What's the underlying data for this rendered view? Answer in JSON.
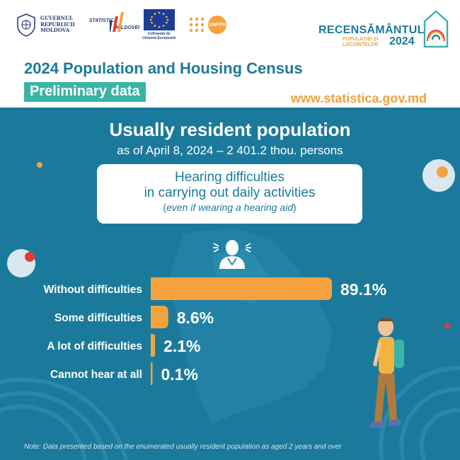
{
  "header": {
    "gov": {
      "line1": "GUVERNUL",
      "line2": "REPUBLICII",
      "line3": "MOLDOVA"
    },
    "statistica": {
      "line1": "STATISTICA",
      "line2": "MOLDOVEI"
    },
    "eu_caption": {
      "line1": "Cofinanțat de",
      "line2": "Uniunea Europeană"
    },
    "unfpa": "UNFPA",
    "brand": {
      "title": "RECENSĂMÂNTUL",
      "sub1": "POPULAȚIEI ȘI",
      "sub2": "LOCUINȚELOR",
      "year": "2024"
    },
    "main_title": "2024 Population and Housing Census",
    "badge": "Preliminary data",
    "website": "www.statistica.gov.md"
  },
  "section": {
    "title": "Usually resident population",
    "subtitle": "as of April 8, 2024 – 2 401.2 thou. persons"
  },
  "topic": {
    "line1": "Hearing difficulties",
    "line2": "in carrying out daily activities",
    "line3": "even if wearing a hearing aid"
  },
  "chart_data": {
    "type": "bar",
    "orientation": "horizontal",
    "title": "Hearing difficulties in carrying out daily activities (even if wearing a hearing aid)",
    "unit": "%",
    "categories": [
      "Without difficulties",
      "Some difficulties",
      "A lot of difficulties",
      "Cannot hear at all"
    ],
    "values": [
      89.1,
      8.6,
      2.1,
      0.1
    ],
    "value_labels": [
      "89.1%",
      "8.6%",
      "2.1%",
      "0.1%"
    ],
    "bar_color": "#f4a23e"
  },
  "note": "Note: Data presented based on the enumerated usually resident population as aged 2 years and over",
  "colors": {
    "background": "#1b7a9c",
    "accent": "#f4a23e",
    "teal": "#3bb4a8"
  }
}
